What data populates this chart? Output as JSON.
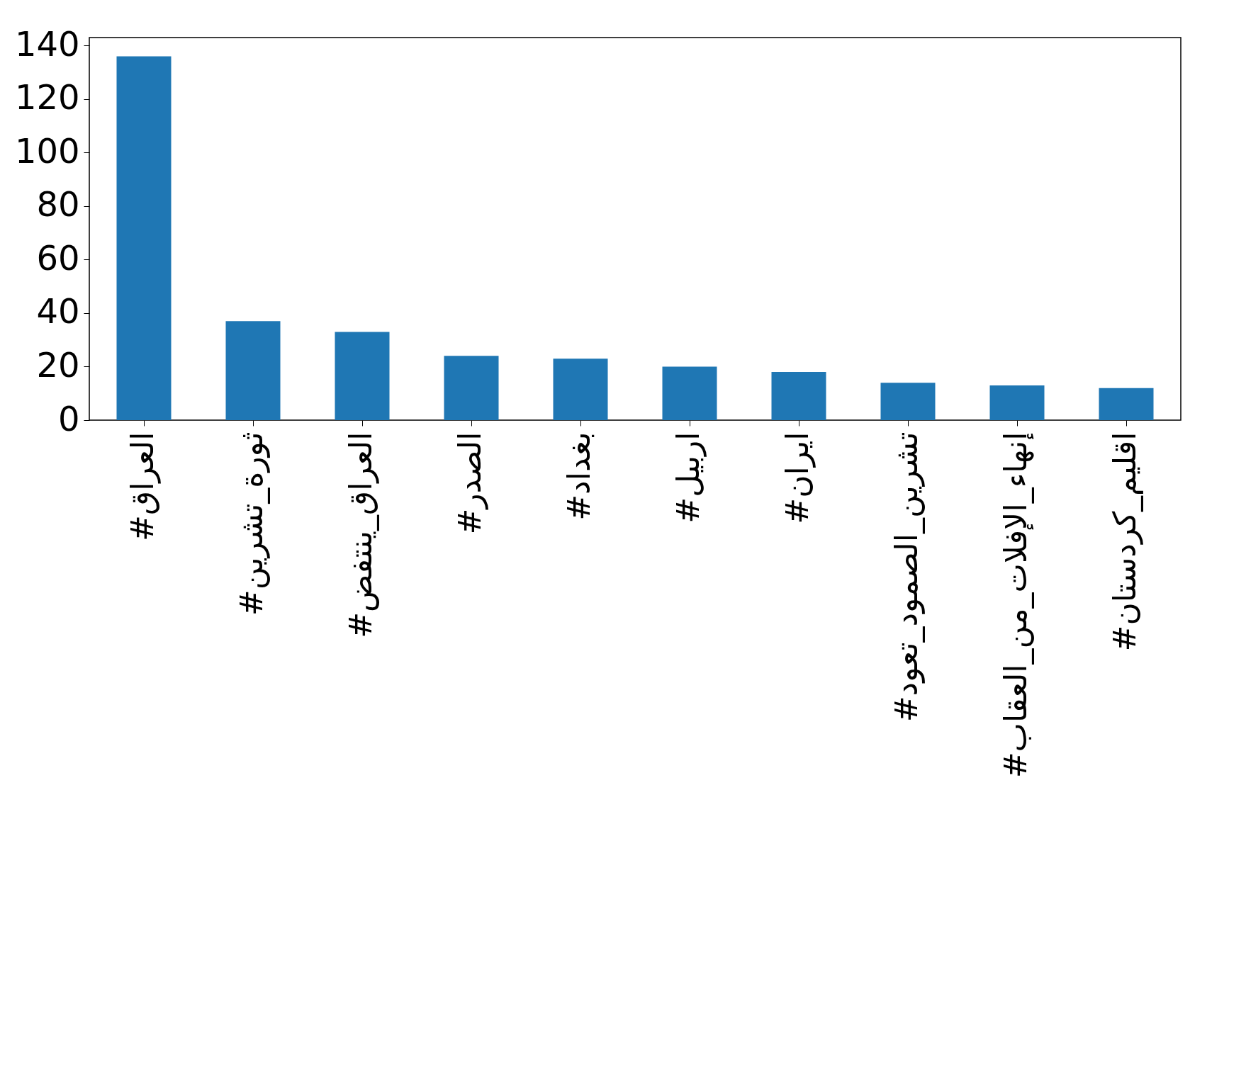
{
  "chart_data": {
    "type": "bar",
    "categories": [
      "#العراق",
      "#ثورة_تشرين",
      "#العراق_ينتفض",
      "#الصدر",
      "#بغداد",
      "#اربيل",
      "#ايران",
      "#تشرين_الصمود_تعود",
      "#إنهاء_الإفلات_من_العقاب",
      "#اقليم_كردستان"
    ],
    "values": [
      136,
      37,
      33,
      24,
      23,
      20,
      18,
      14,
      13,
      12
    ],
    "color": "#1f77b4",
    "ylim": [
      0,
      143
    ],
    "yticks": [
      0,
      20,
      40,
      60,
      80,
      100,
      120,
      140
    ],
    "grid": false
  }
}
